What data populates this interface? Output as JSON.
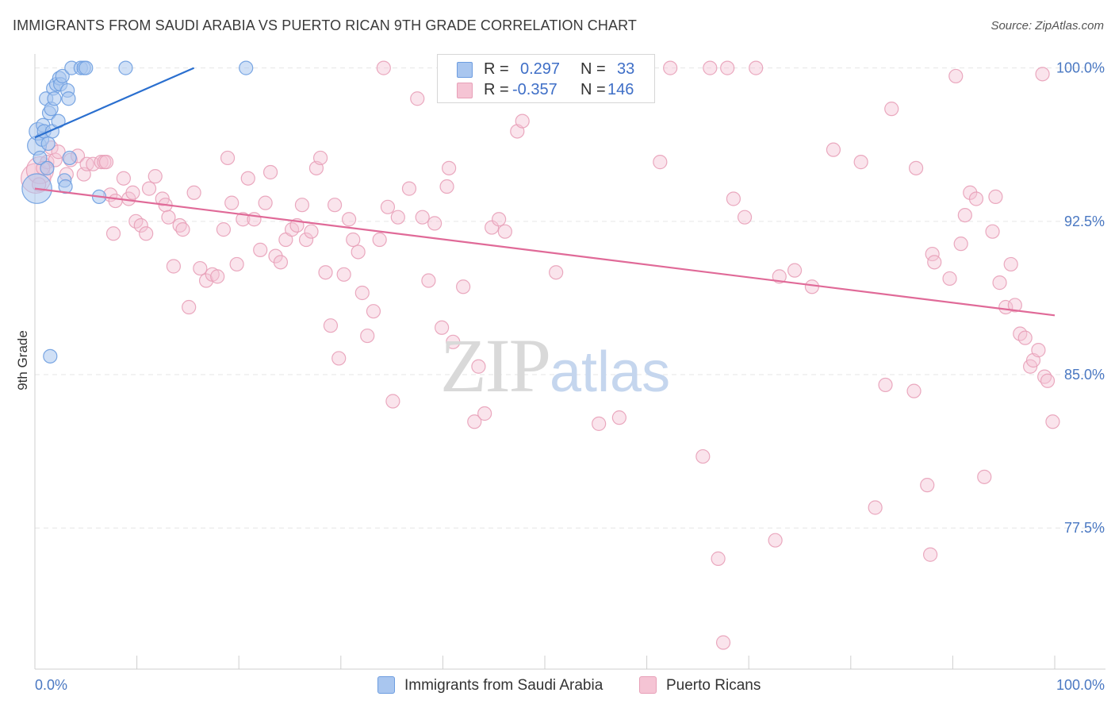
{
  "title": "IMMIGRANTS FROM SAUDI ARABIA VS PUERTO RICAN 9TH GRADE CORRELATION CHART",
  "source": "Source: ZipAtlas.com",
  "watermark": {
    "zip": "ZIP",
    "atlas": "atlas"
  },
  "legend": {
    "r_label": "R =",
    "n_label": "N =",
    "series1": {
      "r": "0.297",
      "n": "33"
    },
    "series2": {
      "r": "-0.357",
      "n": "146"
    }
  },
  "chart_data": {
    "type": "scatter",
    "title": "IMMIGRANTS FROM SAUDI ARABIA VS PUERTO RICAN 9TH GRADE CORRELATION CHART",
    "xlabel": "",
    "ylabel": "9th Grade",
    "xlim": [
      0,
      100
    ],
    "ylim": [
      70.6,
      100.8
    ],
    "x_tick_labels": [
      "0.0%",
      "100.0%"
    ],
    "y_ticks": [
      77.5,
      85.0,
      92.5,
      100.0
    ],
    "y_tick_labels": [
      "77.5%",
      "85.0%",
      "92.5%",
      "100.0%"
    ],
    "grid": true,
    "series": [
      {
        "name": "Immigrants from Saudi Arabia",
        "color": "#6d9de0",
        "fill": "#a9c6ef",
        "trend": {
          "x0": 0,
          "y0": 96.6,
          "x1": 15.6,
          "y1": 100.0
        },
        "points": [
          [
            0.2,
            94.1,
            2.2
          ],
          [
            0.2,
            96.2,
            1.4
          ],
          [
            0.3,
            96.9,
            1.3
          ],
          [
            0.5,
            95.6,
            1.0
          ],
          [
            0.7,
            96.5,
            1.0
          ],
          [
            0.8,
            97.2,
            1.0
          ],
          [
            0.9,
            96.9,
            1.0
          ],
          [
            1.1,
            98.5,
            1.0
          ],
          [
            1.2,
            95.1,
            1.0
          ],
          [
            1.4,
            97.8,
            1.0
          ],
          [
            1.6,
            98.0,
            1.0
          ],
          [
            1.7,
            96.9,
            1.0
          ],
          [
            1.8,
            99.0,
            1.0
          ],
          [
            1.9,
            98.5,
            1.0
          ],
          [
            2.1,
            99.2,
            1.0
          ],
          [
            2.3,
            97.4,
            1.0
          ],
          [
            2.4,
            99.5,
            1.0
          ],
          [
            2.5,
            99.2,
            1.0
          ],
          [
            2.7,
            99.6,
            1.0
          ],
          [
            2.9,
            94.5,
            1.0
          ],
          [
            3.0,
            94.2,
            1.0
          ],
          [
            3.2,
            98.9,
            1.0
          ],
          [
            3.3,
            98.5,
            1.0
          ],
          [
            3.4,
            95.6,
            1.0
          ],
          [
            3.6,
            100.0,
            1.0
          ],
          [
            4.5,
            100.0,
            1.0
          ],
          [
            4.8,
            100.0,
            1.0
          ],
          [
            5.0,
            100.0,
            1.0
          ],
          [
            6.3,
            93.7,
            1.0
          ],
          [
            8.9,
            100.0,
            1.0
          ],
          [
            20.7,
            100.0,
            1.0
          ],
          [
            1.5,
            85.9,
            1.0
          ],
          [
            1.3,
            96.3,
            1.0
          ]
        ]
      },
      {
        "name": "Puerto Ricans",
        "color": "#e8a0b8",
        "fill": "#f5c4d4",
        "trend": {
          "x0": 0,
          "y0": 94.1,
          "x1": 100,
          "y1": 87.9
        },
        "points": [
          [
            0.1,
            94.6,
            2.2
          ],
          [
            0.5,
            95.0,
            2.0
          ],
          [
            1.2,
            95.4,
            1.0
          ],
          [
            1.6,
            96.1,
            1.0
          ],
          [
            2.0,
            95.5,
            1.0
          ],
          [
            2.3,
            95.9,
            1.0
          ],
          [
            3.1,
            94.8,
            1.0
          ],
          [
            3.5,
            95.5,
            1.0
          ],
          [
            4.2,
            95.7,
            1.0
          ],
          [
            4.8,
            94.8,
            1.0
          ],
          [
            5.1,
            95.3,
            1.0
          ],
          [
            5.7,
            95.3,
            1.0
          ],
          [
            6.5,
            95.4,
            1.0
          ],
          [
            6.8,
            95.4,
            1.0
          ],
          [
            7.0,
            95.4,
            1.0
          ],
          [
            7.4,
            93.8,
            1.0
          ],
          [
            7.7,
            91.9,
            1.0
          ],
          [
            7.9,
            93.5,
            1.0
          ],
          [
            8.7,
            94.6,
            1.0
          ],
          [
            9.2,
            93.6,
            1.0
          ],
          [
            9.6,
            93.9,
            1.0
          ],
          [
            9.9,
            92.5,
            1.0
          ],
          [
            10.4,
            92.3,
            1.0
          ],
          [
            10.9,
            91.9,
            1.0
          ],
          [
            11.2,
            94.1,
            1.0
          ],
          [
            11.8,
            94.7,
            1.0
          ],
          [
            12.5,
            93.6,
            1.0
          ],
          [
            12.8,
            93.3,
            1.0
          ],
          [
            13.1,
            92.7,
            1.0
          ],
          [
            13.6,
            90.3,
            1.0
          ],
          [
            14.2,
            92.3,
            1.0
          ],
          [
            14.5,
            92.1,
            1.0
          ],
          [
            15.1,
            88.3,
            1.0
          ],
          [
            15.6,
            93.9,
            1.0
          ],
          [
            16.2,
            90.2,
            1.0
          ],
          [
            16.8,
            89.6,
            1.0
          ],
          [
            17.4,
            89.9,
            1.0
          ],
          [
            17.9,
            89.8,
            1.0
          ],
          [
            18.5,
            92.1,
            1.0
          ],
          [
            18.9,
            95.6,
            1.0
          ],
          [
            19.3,
            93.4,
            1.0
          ],
          [
            19.8,
            90.4,
            1.0
          ],
          [
            20.4,
            92.6,
            1.0
          ],
          [
            20.9,
            94.6,
            1.0
          ],
          [
            21.5,
            92.6,
            1.0
          ],
          [
            22.1,
            91.1,
            1.0
          ],
          [
            22.6,
            93.4,
            1.0
          ],
          [
            23.1,
            94.9,
            1.0
          ],
          [
            23.6,
            90.8,
            1.0
          ],
          [
            24.1,
            90.5,
            1.0
          ],
          [
            24.6,
            91.6,
            1.0
          ],
          [
            25.2,
            92.1,
            1.0
          ],
          [
            25.7,
            92.3,
            1.0
          ],
          [
            26.2,
            93.3,
            1.0
          ],
          [
            26.6,
            91.6,
            1.0
          ],
          [
            27.1,
            92.0,
            1.0
          ],
          [
            27.6,
            95.1,
            1.0
          ],
          [
            28.0,
            95.6,
            1.0
          ],
          [
            28.5,
            90.0,
            1.0
          ],
          [
            29.0,
            87.4,
            1.0
          ],
          [
            29.4,
            93.3,
            1.0
          ],
          [
            29.8,
            85.8,
            1.0
          ],
          [
            30.3,
            89.9,
            1.0
          ],
          [
            30.8,
            92.6,
            1.0
          ],
          [
            31.2,
            91.6,
            1.0
          ],
          [
            31.7,
            91.0,
            1.0
          ],
          [
            32.1,
            89.0,
            1.0
          ],
          [
            32.6,
            86.9,
            1.0
          ],
          [
            33.2,
            88.1,
            1.0
          ],
          [
            33.8,
            91.6,
            1.0
          ],
          [
            34.2,
            100.0,
            1.0
          ],
          [
            34.6,
            93.2,
            1.0
          ],
          [
            35.1,
            83.7,
            1.0
          ],
          [
            35.6,
            92.7,
            1.0
          ],
          [
            36.7,
            94.1,
            1.0
          ],
          [
            37.5,
            98.5,
            1.0
          ],
          [
            38.0,
            92.7,
            1.0
          ],
          [
            38.6,
            89.6,
            1.0
          ],
          [
            39.2,
            92.4,
            1.0
          ],
          [
            39.9,
            87.3,
            1.0
          ],
          [
            40.4,
            94.2,
            1.0
          ],
          [
            40.6,
            95.1,
            1.0
          ],
          [
            41.0,
            86.6,
            1.0
          ],
          [
            42.0,
            89.3,
            1.0
          ],
          [
            43.1,
            82.7,
            1.0
          ],
          [
            43.5,
            85.4,
            1.0
          ],
          [
            44.1,
            83.1,
            1.0
          ],
          [
            44.8,
            92.2,
            1.0
          ],
          [
            45.5,
            92.6,
            1.0
          ],
          [
            46.1,
            92.0,
            1.0
          ],
          [
            47.3,
            96.9,
            1.0
          ],
          [
            47.8,
            97.4,
            1.0
          ],
          [
            49.8,
            100.0,
            1.0
          ],
          [
            51.1,
            90.0,
            1.0
          ],
          [
            52.9,
            100.0,
            1.0
          ],
          [
            55.3,
            82.6,
            1.0
          ],
          [
            57.3,
            82.9,
            1.0
          ],
          [
            61.3,
            95.4,
            1.0
          ],
          [
            62.3,
            100.0,
            1.0
          ],
          [
            65.5,
            81.0,
            1.0
          ],
          [
            66.2,
            100.0,
            1.0
          ],
          [
            67.0,
            76.0,
            1.0
          ],
          [
            67.5,
            71.9,
            1.0
          ],
          [
            67.9,
            100.0,
            1.0
          ],
          [
            68.5,
            93.6,
            1.0
          ],
          [
            69.6,
            92.7,
            1.0
          ],
          [
            70.7,
            100.0,
            1.0
          ],
          [
            72.6,
            76.9,
            1.0
          ],
          [
            73.0,
            89.8,
            1.0
          ],
          [
            74.5,
            90.1,
            1.0
          ],
          [
            76.2,
            89.3,
            1.0
          ],
          [
            78.3,
            96.0,
            1.0
          ],
          [
            81.0,
            95.4,
            1.0
          ],
          [
            82.4,
            78.5,
            1.0
          ],
          [
            83.4,
            84.5,
            1.0
          ],
          [
            84.0,
            98.0,
            1.0
          ],
          [
            86.2,
            84.2,
            1.0
          ],
          [
            86.4,
            95.1,
            1.0
          ],
          [
            87.5,
            79.6,
            1.0
          ],
          [
            87.8,
            76.2,
            1.0
          ],
          [
            88.0,
            90.9,
            1.0
          ],
          [
            88.2,
            90.5,
            1.0
          ],
          [
            89.7,
            89.7,
            1.0
          ],
          [
            90.3,
            99.6,
            1.0
          ],
          [
            90.8,
            91.4,
            1.0
          ],
          [
            91.2,
            92.8,
            1.0
          ],
          [
            91.7,
            93.9,
            1.0
          ],
          [
            92.3,
            93.6,
            1.0
          ],
          [
            93.1,
            80.0,
            1.0
          ],
          [
            93.9,
            92.0,
            1.0
          ],
          [
            94.2,
            93.7,
            1.0
          ],
          [
            94.6,
            89.5,
            1.0
          ],
          [
            95.2,
            88.3,
            1.0
          ],
          [
            95.7,
            90.4,
            1.0
          ],
          [
            96.1,
            88.4,
            1.0
          ],
          [
            96.6,
            87.0,
            1.0
          ],
          [
            97.1,
            86.8,
            1.0
          ],
          [
            97.6,
            85.4,
            1.0
          ],
          [
            97.9,
            85.7,
            1.0
          ],
          [
            98.4,
            86.2,
            1.0
          ],
          [
            99.0,
            84.9,
            1.0
          ],
          [
            99.3,
            84.7,
            1.0
          ],
          [
            99.8,
            82.7,
            1.0
          ],
          [
            98.8,
            99.7,
            1.0
          ],
          [
            0.8,
            95.1,
            1.0
          ],
          [
            0.4,
            94.3,
            1.0
          ]
        ]
      }
    ]
  },
  "bottom_legend": [
    "Immigrants from Saudi Arabia",
    "Puerto Ricans"
  ]
}
